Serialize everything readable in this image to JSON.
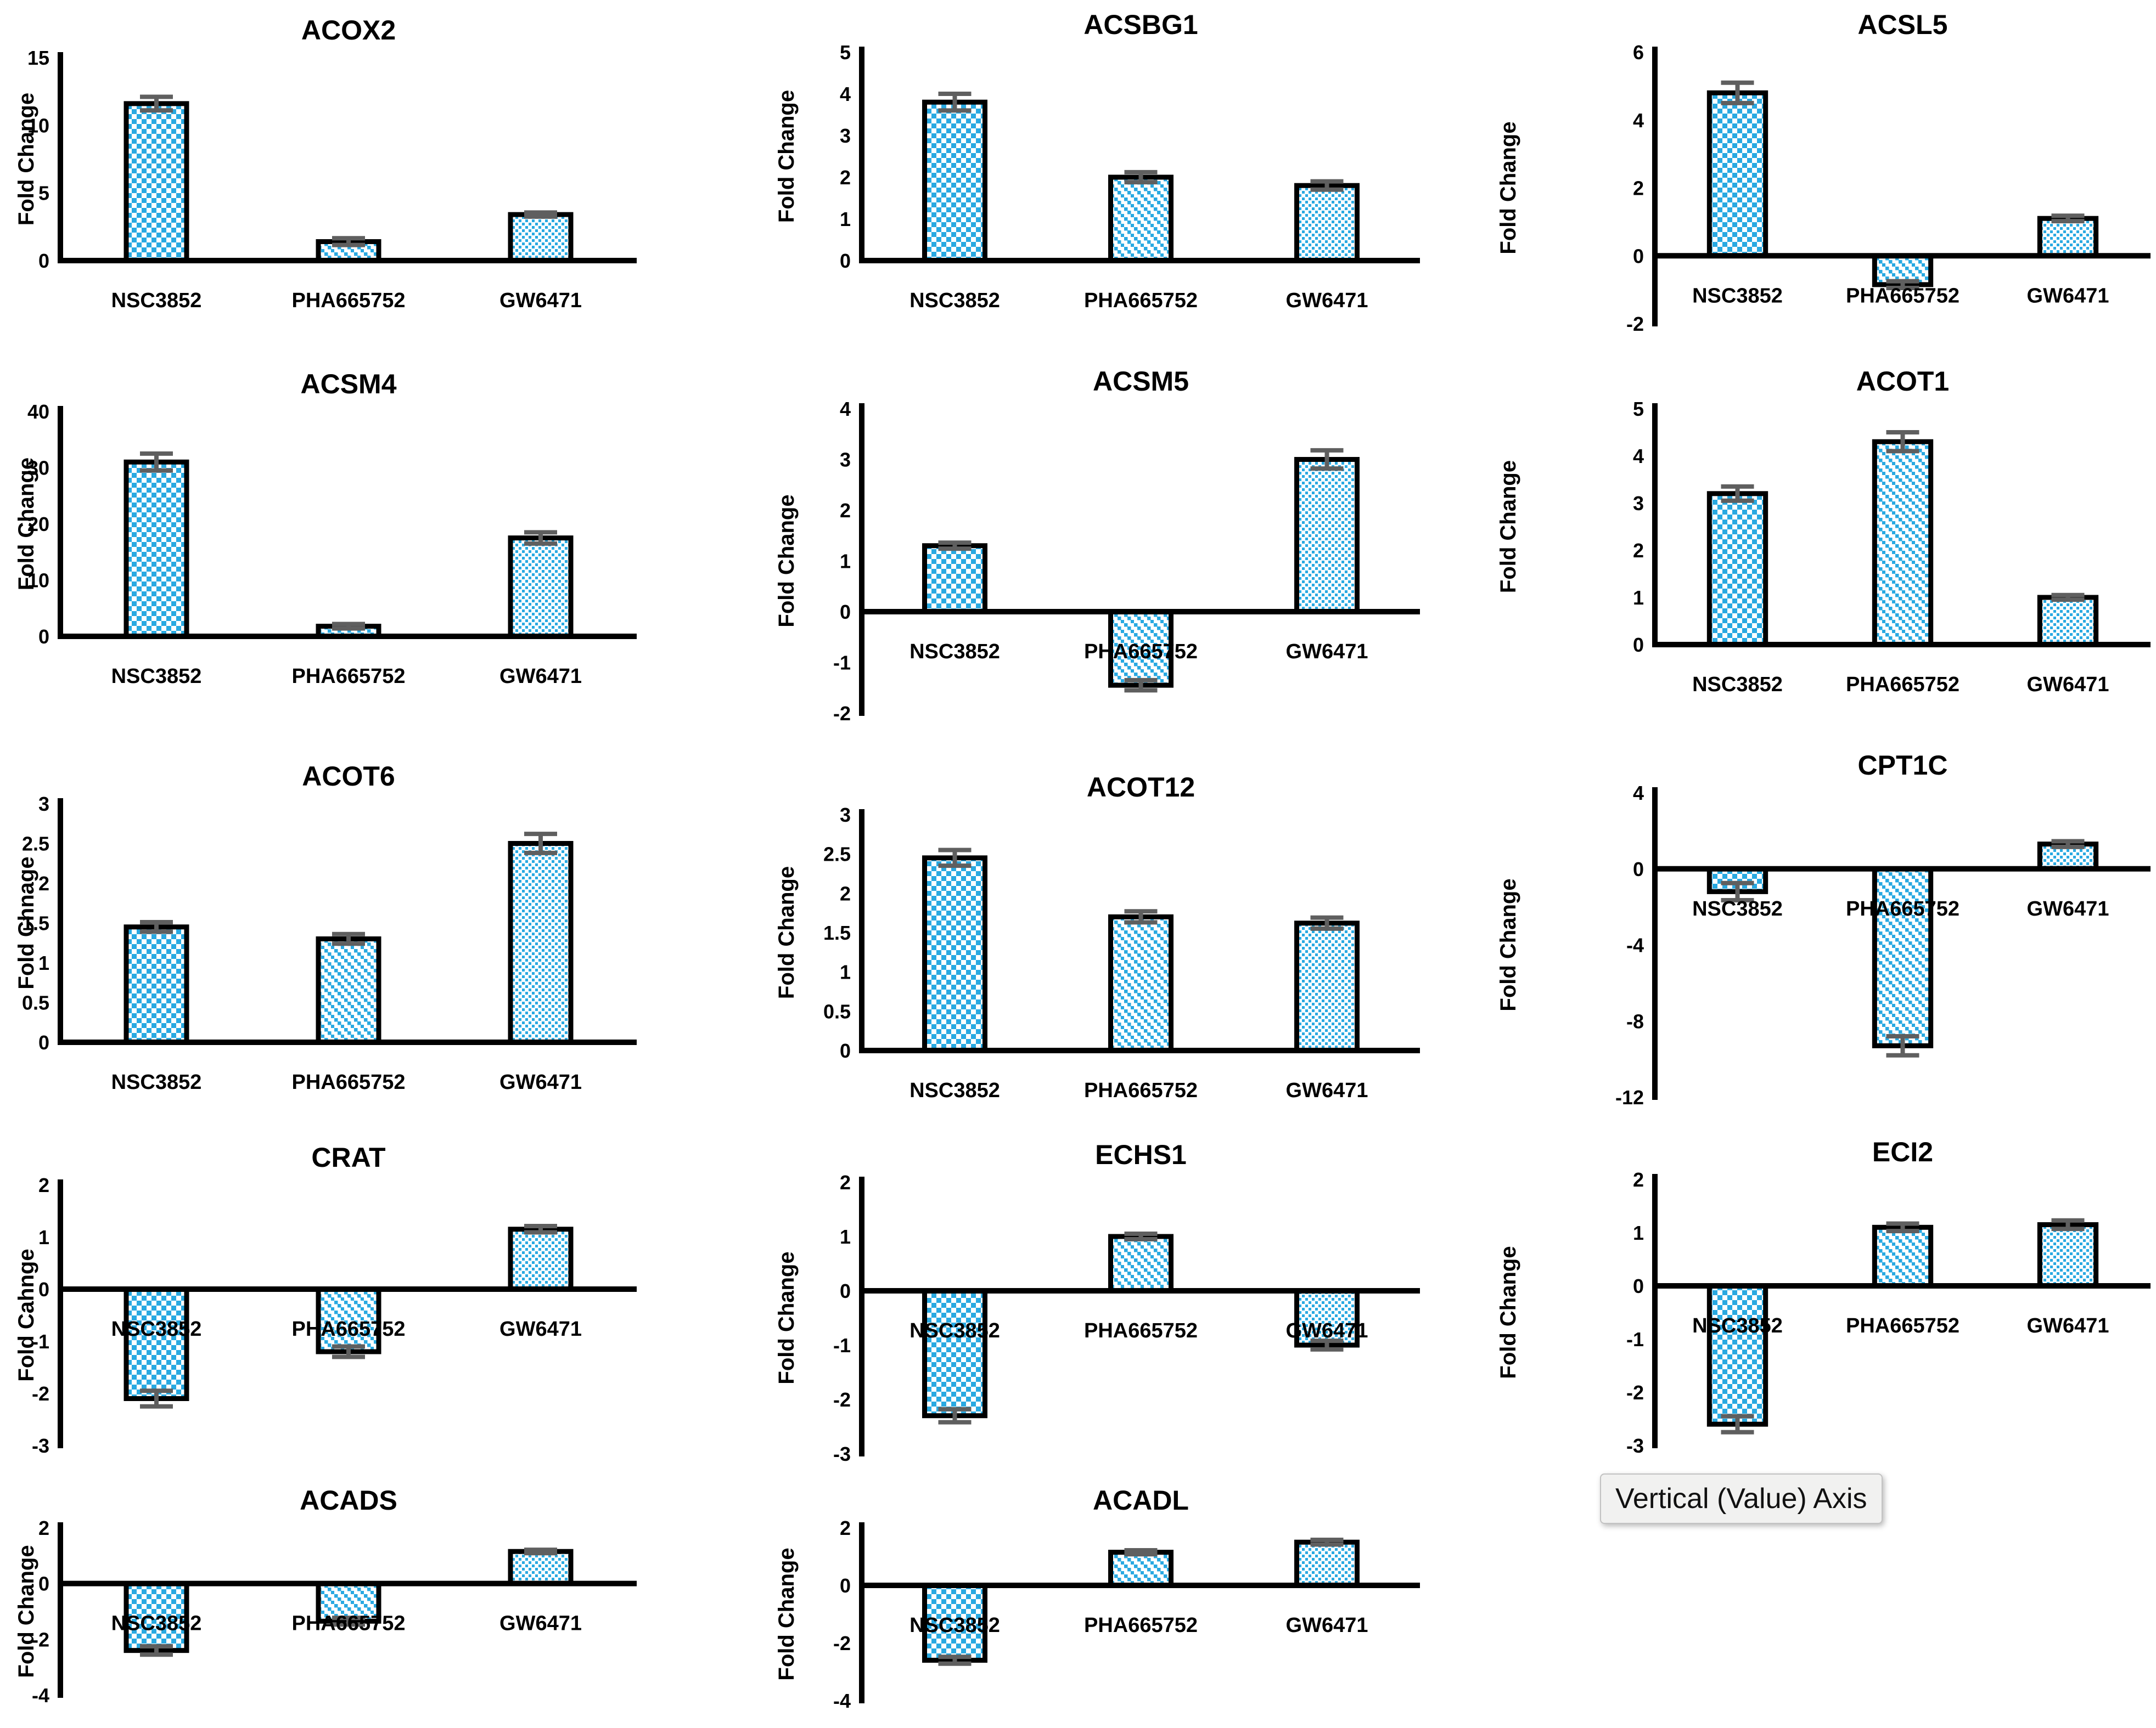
{
  "window": {
    "background": "#ffffff"
  },
  "tooltip": {
    "label": "Vertical (Value) Axis"
  },
  "colors": {
    "bar_fill": "#29A9E1",
    "bar_stroke": "#000000",
    "axis": "#000000",
    "error_bar": "#5f5f5f",
    "text": "#000000",
    "tooltip_bg": "#f1f1f0"
  },
  "series_patterns": {
    "NSC3852": "checker",
    "PHA665752": "diagonal-stripes",
    "GW6471": "dots"
  },
  "chart_data": [
    {
      "type": "bar",
      "title": "ACOX2",
      "ylabel": "Fold Change",
      "categories": [
        "NSC3852",
        "PHA665752",
        "GW6471"
      ],
      "values": [
        11.6,
        1.4,
        3.4
      ],
      "errors": [
        0.5,
        0.25,
        0.15
      ],
      "ylim": [
        0,
        15
      ],
      "yticks": [
        0,
        5,
        10,
        15
      ],
      "grid": false,
      "legend": "none"
    },
    {
      "type": "bar",
      "title": "ACSBG1",
      "ylabel": "Fold Change",
      "categories": [
        "NSC3852",
        "PHA665752",
        "GW6471"
      ],
      "values": [
        3.8,
        2.0,
        1.8
      ],
      "errors": [
        0.2,
        0.12,
        0.1
      ],
      "ylim": [
        0,
        5
      ],
      "yticks": [
        0,
        1,
        2,
        3,
        4,
        5
      ],
      "grid": false,
      "legend": "none"
    },
    {
      "type": "bar",
      "title": "ACSL5",
      "ylabel": "Fold Change",
      "categories": [
        "NSC3852",
        "PHA665752",
        "GW6471"
      ],
      "values": [
        4.8,
        -0.85,
        1.1
      ],
      "errors": [
        0.3,
        0.1,
        0.08
      ],
      "ylim": [
        -2,
        6
      ],
      "yticks": [
        -2,
        0,
        2,
        4,
        6
      ],
      "grid": false,
      "legend": "none"
    },
    {
      "type": "bar",
      "title": "ACSM4",
      "ylabel": "Fold Change",
      "categories": [
        "NSC3852",
        "PHA665752",
        "GW6471"
      ],
      "values": [
        31,
        1.8,
        17.5
      ],
      "errors": [
        1.5,
        0.4,
        1.0
      ],
      "ylim": [
        0,
        40
      ],
      "yticks": [
        0,
        10,
        20,
        30,
        40
      ],
      "grid": false,
      "legend": "none"
    },
    {
      "type": "bar",
      "title": "ACSM5",
      "ylabel": "Fold Change",
      "categories": [
        "NSC3852",
        "PHA665752",
        "GW6471"
      ],
      "values": [
        1.3,
        -1.45,
        3.0
      ],
      "errors": [
        0.06,
        0.1,
        0.18
      ],
      "ylim": [
        -2,
        4
      ],
      "yticks": [
        -2,
        -1,
        0,
        1,
        2,
        3,
        4
      ],
      "grid": false,
      "legend": "none"
    },
    {
      "type": "bar",
      "title": "ACOT1",
      "ylabel": "Fold Change",
      "categories": [
        "NSC3852",
        "PHA665752",
        "GW6471"
      ],
      "values": [
        3.2,
        4.3,
        1.0
      ],
      "errors": [
        0.15,
        0.2,
        0.05
      ],
      "ylim": [
        0,
        5
      ],
      "yticks": [
        0,
        1,
        2,
        3,
        4,
        5
      ],
      "grid": false,
      "legend": "none"
    },
    {
      "type": "bar",
      "title": "ACOT6",
      "ylabel": "Fold Chnage",
      "categories": [
        "NSC3852",
        "PHA665752",
        "GW6471"
      ],
      "values": [
        1.45,
        1.3,
        2.5
      ],
      "errors": [
        0.06,
        0.06,
        0.12
      ],
      "ylim": [
        0,
        3
      ],
      "yticks": [
        0,
        0.5,
        1,
        1.5,
        2,
        2.5,
        3
      ],
      "grid": false,
      "legend": "none"
    },
    {
      "type": "bar",
      "title": "ACOT12",
      "ylabel": "Fold Change",
      "categories": [
        "NSC3852",
        "PHA665752",
        "GW6471"
      ],
      "values": [
        2.45,
        1.7,
        1.62
      ],
      "errors": [
        0.1,
        0.07,
        0.07
      ],
      "ylim": [
        0,
        3
      ],
      "yticks": [
        0,
        0.5,
        1,
        1.5,
        2,
        2.5,
        3
      ],
      "grid": false,
      "legend": "none"
    },
    {
      "type": "bar",
      "title": "CPT1C",
      "ylabel": "Fold Change",
      "categories": [
        "NSC3852",
        "PHA665752",
        "GW6471"
      ],
      "values": [
        -1.2,
        -9.3,
        1.3
      ],
      "errors": [
        0.45,
        0.5,
        0.15
      ],
      "ylim": [
        -12,
        4
      ],
      "yticks": [
        -12,
        -8,
        -4,
        0,
        4
      ],
      "grid": false,
      "legend": "none"
    },
    {
      "type": "bar",
      "title": "CRAT",
      "ylabel": "Fold Cahnge",
      "categories": [
        "NSC3852",
        "PHA665752",
        "GW6471"
      ],
      "values": [
        -2.1,
        -1.2,
        1.15
      ],
      "errors": [
        0.15,
        0.1,
        0.06
      ],
      "ylim": [
        -3,
        2
      ],
      "yticks": [
        -3,
        -2,
        -1,
        0,
        1,
        2
      ],
      "grid": false,
      "legend": "none"
    },
    {
      "type": "bar",
      "title": "ECHS1",
      "ylabel": "Fold Change",
      "categories": [
        "NSC3852",
        "PHA665752",
        "GW6471"
      ],
      "values": [
        -2.3,
        1.0,
        -1.0
      ],
      "errors": [
        0.12,
        0.05,
        0.08
      ],
      "ylim": [
        -3,
        2
      ],
      "yticks": [
        -3,
        -2,
        -1,
        0,
        1,
        2
      ],
      "grid": false,
      "legend": "none"
    },
    {
      "type": "bar",
      "title": "ECI2",
      "ylabel": "Fold Change",
      "categories": [
        "NSC3852",
        "PHA665752",
        "GW6471"
      ],
      "values": [
        -2.6,
        1.1,
        1.15
      ],
      "errors": [
        0.15,
        0.07,
        0.08
      ],
      "ylim": [
        -3,
        2
      ],
      "yticks": [
        -3,
        -2,
        -1,
        0,
        1,
        2
      ],
      "grid": false,
      "legend": "none"
    },
    {
      "type": "bar",
      "title": "ACADS",
      "ylabel": "Fold Change",
      "categories": [
        "NSC3852",
        "PHA665752",
        "GW6471"
      ],
      "values": [
        -2.4,
        -1.35,
        1.15
      ],
      "errors": [
        0.15,
        0.12,
        0.06
      ],
      "ylim": [
        -4,
        2
      ],
      "yticks": [
        -4,
        -2,
        0,
        2
      ],
      "grid": false,
      "legend": "none"
    },
    {
      "type": "bar",
      "title": "ACADL",
      "ylabel": "Fold Change",
      "categories": [
        "NSC3852",
        "PHA665752",
        "GW6471"
      ],
      "values": [
        -2.6,
        1.15,
        1.5
      ],
      "errors": [
        0.12,
        0.07,
        0.08
      ],
      "ylim": [
        -4,
        2
      ],
      "yticks": [
        -4,
        -2,
        0,
        2
      ],
      "grid": false,
      "legend": "none"
    }
  ]
}
